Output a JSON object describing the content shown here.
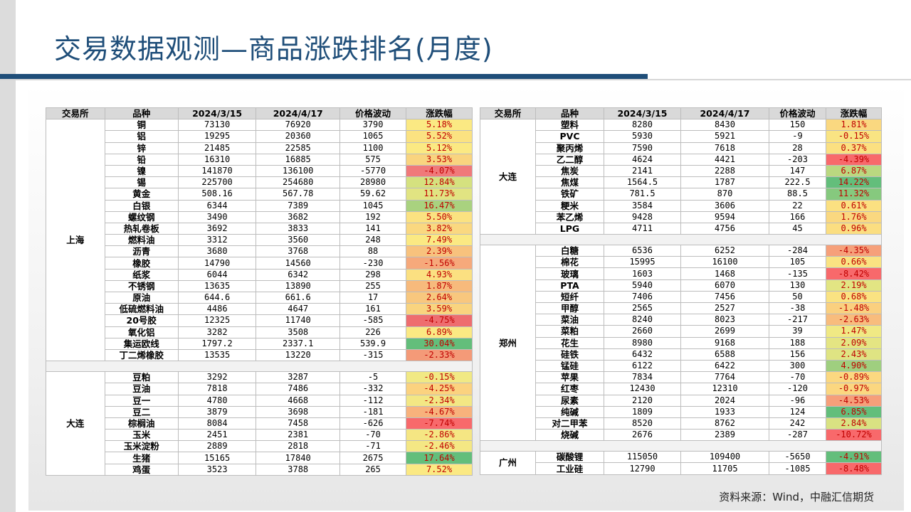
{
  "title": "交易数据观测—商品涨跌排名(月度)",
  "source": "资料来源：Wind，中融汇信期货",
  "headers": [
    "交易所",
    "品种",
    "2024/3/15",
    "2024/4/17",
    "价格波动",
    "涨跌幅"
  ],
  "left": [
    {
      "exchange": "上海",
      "rows": [
        [
          "铜",
          "73130",
          "76920",
          "3790",
          "5.18%",
          "#fbe983"
        ],
        [
          "铝",
          "19295",
          "20360",
          "1065",
          "5.52%",
          "#fbe281"
        ],
        [
          "锌",
          "21485",
          "22585",
          "1100",
          "5.12%",
          "#fbe983"
        ],
        [
          "铅",
          "16310",
          "16885",
          "575",
          "3.53%",
          "#f9d47f"
        ],
        [
          "镍",
          "141870",
          "136100",
          "-5770",
          "-4.07%",
          "#f0797a"
        ],
        [
          "锡",
          "225700",
          "254680",
          "28980",
          "12.84%",
          "#d5e17f"
        ],
        [
          "黄金",
          "508.16",
          "567.78",
          "59.62",
          "11.73%",
          "#e1e482"
        ],
        [
          "白银",
          "6344",
          "7389",
          "1045",
          "16.47%",
          "#a9d27f"
        ],
        [
          "螺纹钢",
          "3490",
          "3682",
          "192",
          "5.50%",
          "#fbe281"
        ],
        [
          "热轧卷板",
          "3692",
          "3833",
          "141",
          "3.82%",
          "#fad880"
        ],
        [
          "燃料油",
          "3312",
          "3560",
          "248",
          "7.49%",
          "#fbe983"
        ],
        [
          "沥青",
          "3680",
          "3768",
          "88",
          "2.39%",
          "#f8c27d"
        ],
        [
          "橡胶",
          "14790",
          "14560",
          "-230",
          "-1.56%",
          "#f6a97b"
        ],
        [
          "纸浆",
          "6044",
          "6342",
          "298",
          "4.93%",
          "#fbe081"
        ],
        [
          "不锈钢",
          "13635",
          "13890",
          "255",
          "1.87%",
          "#f7ba7c"
        ],
        [
          "原油",
          "644.6",
          "661.6",
          "17",
          "2.64%",
          "#f8c77e"
        ],
        [
          "低硫燃料油",
          "4486",
          "4647",
          "161",
          "3.59%",
          "#f9d47f"
        ],
        [
          "20号胶",
          "12325",
          "11740",
          "-585",
          "-4.75%",
          "#ee6d6f"
        ],
        [
          "氧化铝",
          "3282",
          "3508",
          "226",
          "6.89%",
          "#fbe983"
        ],
        [
          "集运欧线",
          "1797.2",
          "2337.1",
          "539.9",
          "30.04%",
          "#63be7b"
        ],
        [
          "丁二烯橡胶",
          "13535",
          "13220",
          "-315",
          "-2.33%",
          "#f49a78"
        ]
      ]
    },
    {
      "exchange": "大连",
      "rows": [
        [
          "豆粕",
          "3292",
          "3287",
          "-5",
          "-0.15%",
          "#f1e984"
        ],
        [
          "豆油",
          "7818",
          "7486",
          "-332",
          "-4.25%",
          "#fbd27f"
        ],
        [
          "豆一",
          "4780",
          "4668",
          "-112",
          "-2.34%",
          "#f3e784"
        ],
        [
          "豆二",
          "3879",
          "3698",
          "-181",
          "-4.67%",
          "#f8b27c"
        ],
        [
          "棕榈油",
          "8084",
          "7458",
          "-626",
          "-7.74%",
          "#f8696b"
        ],
        [
          "玉米",
          "2451",
          "2381",
          "-70",
          "-2.86%",
          "#f5e683"
        ],
        [
          "玉米淀粉",
          "2889",
          "2818",
          "-71",
          "-2.46%",
          "#f4e784"
        ],
        [
          "生猪",
          "15165",
          "17840",
          "2675",
          "17.64%",
          "#63be7b"
        ],
        [
          "鸡蛋",
          "3523",
          "3788",
          "265",
          "7.52%",
          "#fbe983"
        ]
      ]
    }
  ],
  "right": [
    {
      "exchange": "大连",
      "rows": [
        [
          "塑料",
          "8280",
          "8430",
          "150",
          "1.81%",
          "#fad880"
        ],
        [
          "PVC",
          "5930",
          "5921",
          "-9",
          "-0.15%",
          "#f9e483"
        ],
        [
          "聚丙烯",
          "7590",
          "7618",
          "28",
          "0.37%",
          "#fbe081"
        ],
        [
          "乙二醇",
          "4624",
          "4421",
          "-203",
          "-4.39%",
          "#f8696b"
        ],
        [
          "焦炭",
          "2141",
          "2288",
          "147",
          "6.87%",
          "#bad880"
        ],
        [
          "焦煤",
          "1564.5",
          "1787",
          "222.5",
          "14.22%",
          "#63be7b"
        ],
        [
          "铁矿",
          "781.5",
          "870",
          "88.5",
          "11.32%",
          "#86c97e"
        ],
        [
          "粳米",
          "3584",
          "3606",
          "22",
          "0.61%",
          "#fbe081"
        ],
        [
          "苯乙烯",
          "9428",
          "9594",
          "166",
          "1.76%",
          "#fad880"
        ],
        [
          "LPG",
          "4711",
          "4756",
          "45",
          "0.96%",
          "#fbde81"
        ]
      ]
    },
    {
      "exchange": "郑州",
      "rows": [
        [
          "白糖",
          "6536",
          "6252",
          "-284",
          "-4.35%",
          "#f6a07a"
        ],
        [
          "棉花",
          "15995",
          "16100",
          "105",
          "0.66%",
          "#fae382"
        ],
        [
          "玻璃",
          "1603",
          "1468",
          "-135",
          "-8.42%",
          "#f8696b"
        ],
        [
          "PTA",
          "5940",
          "6070",
          "130",
          "2.19%",
          "#e2e583"
        ],
        [
          "短纤",
          "7406",
          "7456",
          "50",
          "0.68%",
          "#fae382"
        ],
        [
          "甲醇",
          "2565",
          "2527",
          "-38",
          "-1.48%",
          "#fad07f"
        ],
        [
          "菜油",
          "8240",
          "8023",
          "-217",
          "-2.63%",
          "#f8bc7d"
        ],
        [
          "菜粕",
          "2660",
          "2699",
          "39",
          "1.47%",
          "#f0e984"
        ],
        [
          "花生",
          "8980",
          "9168",
          "188",
          "2.09%",
          "#e4e583"
        ],
        [
          "硅铁",
          "6432",
          "6588",
          "156",
          "2.43%",
          "#dfe483"
        ],
        [
          "锰硅",
          "6122",
          "6422",
          "300",
          "4.90%",
          "#9fcf7f"
        ],
        [
          "苹果",
          "7834",
          "7764",
          "-70",
          "-0.89%",
          "#fbd880"
        ],
        [
          "红枣",
          "12430",
          "12310",
          "-120",
          "-0.97%",
          "#fbd780"
        ],
        [
          "尿素",
          "2120",
          "2024",
          "-96",
          "-4.53%",
          "#f69f7a"
        ],
        [
          "纯碱",
          "1809",
          "1933",
          "124",
          "6.85%",
          "#63be7b"
        ],
        [
          "对二甲苯",
          "8520",
          "8762",
          "242",
          "2.84%",
          "#d9e282"
        ],
        [
          "烧碱",
          "2676",
          "2389",
          "-287",
          "-10.72%",
          "#f8696b"
        ]
      ]
    },
    {
      "exchange": "广州",
      "rows": [
        [
          "碳酸锂",
          "115050",
          "109400",
          "-5650",
          "-4.91%",
          "#63be7b"
        ],
        [
          "工业硅",
          "12790",
          "11705",
          "-1085",
          "-8.48%",
          "#f8696b"
        ]
      ]
    }
  ]
}
